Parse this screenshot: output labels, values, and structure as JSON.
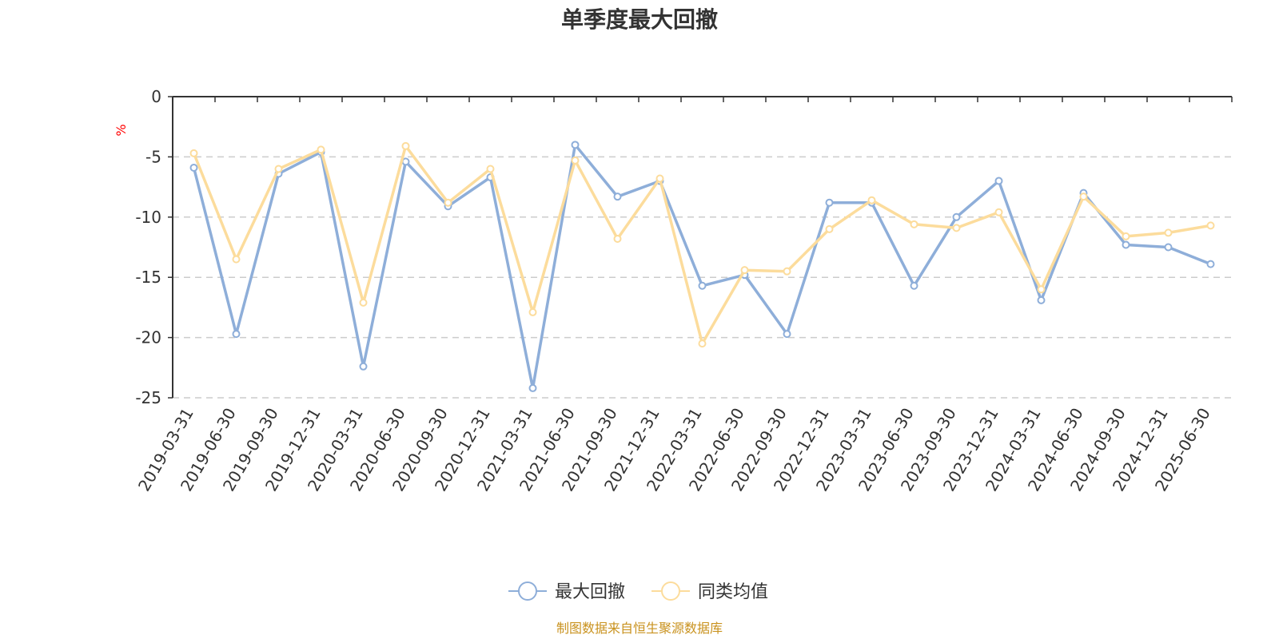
{
  "chart_data": {
    "type": "line",
    "title": "单季度最大回撤",
    "ylabel": "%",
    "ylim": [
      -25,
      0
    ],
    "yticks": [
      0,
      -5,
      -10,
      -15,
      -20,
      -25
    ],
    "grid": true,
    "legend_placement": "bottom-center",
    "categories": [
      "2019-03-31",
      "2019-06-30",
      "2019-09-30",
      "2019-12-31",
      "2020-03-31",
      "2020-06-30",
      "2020-09-30",
      "2020-12-31",
      "2021-03-31",
      "2021-06-30",
      "2021-09-30",
      "2021-12-31",
      "2022-03-31",
      "2022-06-30",
      "2022-09-30",
      "2022-12-31",
      "2023-03-31",
      "2023-06-30",
      "2023-09-30",
      "2023-12-31",
      "2024-03-31",
      "2024-06-30",
      "2024-09-30",
      "2024-12-31",
      "2025-06-30"
    ],
    "series": [
      {
        "name": "最大回撤",
        "color": "#8eaed9",
        "values": [
          -5.9,
          -19.7,
          -6.4,
          -4.6,
          -22.4,
          -5.4,
          -9.1,
          -6.7,
          -24.2,
          -4.0,
          -8.3,
          -7.0,
          -15.7,
          -14.8,
          -19.7,
          -8.8,
          -8.8,
          -15.7,
          -10.0,
          -7.0,
          -16.9,
          -8.0,
          -12.3,
          -12.5,
          -13.9
        ]
      },
      {
        "name": "同类均值",
        "color": "#fcdc9c",
        "values": [
          -4.7,
          -13.5,
          -6.0,
          -4.4,
          -17.1,
          -4.1,
          -8.8,
          -6.0,
          -17.9,
          -5.3,
          -11.8,
          -6.8,
          -20.5,
          -14.4,
          -14.5,
          -11.0,
          -8.6,
          -10.6,
          -10.9,
          -9.6,
          -16.0,
          -8.3,
          -11.6,
          -11.3,
          -10.7
        ]
      }
    ]
  },
  "colors": {
    "axis": "#333333",
    "grid": "#cccccc",
    "unit": "#ff0000",
    "source": "#c9921e"
  },
  "footer": {
    "source": "制图数据来自恒生聚源数据库"
  }
}
